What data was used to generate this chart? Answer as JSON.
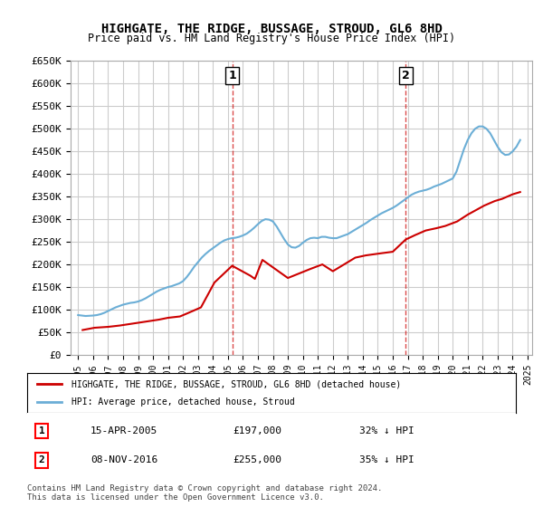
{
  "title": "HIGHGATE, THE RIDGE, BUSSAGE, STROUD, GL6 8HD",
  "subtitle": "Price paid vs. HM Land Registry's House Price Index (HPI)",
  "legend_line1": "HIGHGATE, THE RIDGE, BUSSAGE, STROUD, GL6 8HD (detached house)",
  "legend_line2": "HPI: Average price, detached house, Stroud",
  "footer": "Contains HM Land Registry data © Crown copyright and database right 2024.\nThis data is licensed under the Open Government Licence v3.0.",
  "annotation1": {
    "num": "1",
    "date": "15-APR-2005",
    "price": "£197,000",
    "desc": "32% ↓ HPI"
  },
  "annotation2": {
    "num": "2",
    "date": "08-NOV-2016",
    "price": "£255,000",
    "desc": "35% ↓ HPI"
  },
  "vline1_year": 2005.28,
  "vline2_year": 2016.86,
  "ylim": [
    0,
    650000
  ],
  "xlim_left": 1994.5,
  "xlim_right": 2025.3,
  "yticks": [
    0,
    50000,
    100000,
    150000,
    200000,
    250000,
    300000,
    350000,
    400000,
    450000,
    500000,
    550000,
    600000,
    650000
  ],
  "ytick_labels": [
    "£0",
    "£50K",
    "£100K",
    "£150K",
    "£200K",
    "£250K",
    "£300K",
    "£350K",
    "£400K",
    "£450K",
    "£500K",
    "£550K",
    "£600K",
    "£650K"
  ],
  "xtick_years": [
    1995,
    1996,
    1997,
    1998,
    1999,
    2000,
    2001,
    2002,
    2003,
    2004,
    2005,
    2006,
    2007,
    2008,
    2009,
    2010,
    2011,
    2012,
    2013,
    2014,
    2015,
    2016,
    2017,
    2018,
    2019,
    2020,
    2021,
    2022,
    2023,
    2024,
    2025
  ],
  "hpi_color": "#6baed6",
  "price_color": "#cc0000",
  "vline_color": "#cc0000",
  "grid_color": "#cccccc",
  "bg_color": "#ffffff",
  "hpi_data_x": [
    1995.0,
    1995.25,
    1995.5,
    1995.75,
    1996.0,
    1996.25,
    1996.5,
    1996.75,
    1997.0,
    1997.25,
    1997.5,
    1997.75,
    1998.0,
    1998.25,
    1998.5,
    1998.75,
    1999.0,
    1999.25,
    1999.5,
    1999.75,
    2000.0,
    2000.25,
    2000.5,
    2000.75,
    2001.0,
    2001.25,
    2001.5,
    2001.75,
    2002.0,
    2002.25,
    2002.5,
    2002.75,
    2003.0,
    2003.25,
    2003.5,
    2003.75,
    2004.0,
    2004.25,
    2004.5,
    2004.75,
    2005.0,
    2005.25,
    2005.5,
    2005.75,
    2006.0,
    2006.25,
    2006.5,
    2006.75,
    2007.0,
    2007.25,
    2007.5,
    2007.75,
    2008.0,
    2008.25,
    2008.5,
    2008.75,
    2009.0,
    2009.25,
    2009.5,
    2009.75,
    2010.0,
    2010.25,
    2010.5,
    2010.75,
    2011.0,
    2011.25,
    2011.5,
    2011.75,
    2012.0,
    2012.25,
    2012.5,
    2012.75,
    2013.0,
    2013.25,
    2013.5,
    2013.75,
    2014.0,
    2014.25,
    2014.5,
    2014.75,
    2015.0,
    2015.25,
    2015.5,
    2015.75,
    2016.0,
    2016.25,
    2016.5,
    2016.75,
    2017.0,
    2017.25,
    2017.5,
    2017.75,
    2018.0,
    2018.25,
    2018.5,
    2018.75,
    2019.0,
    2019.25,
    2019.5,
    2019.75,
    2020.0,
    2020.25,
    2020.5,
    2020.75,
    2021.0,
    2021.25,
    2021.5,
    2021.75,
    2022.0,
    2022.25,
    2022.5,
    2022.75,
    2023.0,
    2023.25,
    2023.5,
    2023.75,
    2024.0,
    2024.25,
    2024.5
  ],
  "hpi_data_y": [
    88000,
    87000,
    86000,
    86500,
    87000,
    88000,
    90000,
    93000,
    97000,
    101000,
    105000,
    108000,
    111000,
    113000,
    115000,
    116000,
    118000,
    121000,
    125000,
    130000,
    135000,
    140000,
    144000,
    147000,
    150000,
    152000,
    155000,
    158000,
    163000,
    172000,
    183000,
    195000,
    205000,
    215000,
    223000,
    230000,
    236000,
    242000,
    248000,
    253000,
    256000,
    258000,
    259000,
    261000,
    264000,
    268000,
    274000,
    281000,
    289000,
    296000,
    300000,
    299000,
    295000,
    284000,
    270000,
    256000,
    244000,
    238000,
    237000,
    241000,
    248000,
    254000,
    258000,
    259000,
    258000,
    261000,
    261000,
    259000,
    258000,
    258000,
    261000,
    264000,
    267000,
    272000,
    277000,
    282000,
    287000,
    292000,
    298000,
    303000,
    308000,
    313000,
    317000,
    321000,
    325000,
    330000,
    336000,
    342000,
    348000,
    354000,
    358000,
    361000,
    363000,
    365000,
    368000,
    372000,
    375000,
    378000,
    382000,
    386000,
    390000,
    405000,
    430000,
    455000,
    475000,
    490000,
    500000,
    505000,
    505000,
    500000,
    490000,
    475000,
    460000,
    448000,
    442000,
    443000,
    450000,
    460000,
    475000
  ],
  "price_data_x": [
    1995.3,
    1996.1,
    1997.0,
    1997.8,
    1999.2,
    2000.4,
    2001.0,
    2001.8,
    2002.3,
    2003.2,
    2004.1,
    2005.28,
    2006.5,
    2006.8,
    2007.3,
    2009.0,
    2010.5,
    2011.3,
    2012.0,
    2013.5,
    2014.2,
    2015.3,
    2016.0,
    2016.86,
    2017.5,
    2018.2,
    2018.9,
    2019.5,
    2020.3,
    2021.0,
    2022.1,
    2022.8,
    2023.3,
    2024.0,
    2024.5
  ],
  "price_data_y": [
    55000,
    60000,
    62000,
    65000,
    72000,
    78000,
    82000,
    85000,
    92000,
    105000,
    160000,
    197000,
    175000,
    168000,
    210000,
    170000,
    190000,
    200000,
    185000,
    215000,
    220000,
    225000,
    228000,
    255000,
    265000,
    275000,
    280000,
    285000,
    295000,
    310000,
    330000,
    340000,
    345000,
    355000,
    360000
  ]
}
